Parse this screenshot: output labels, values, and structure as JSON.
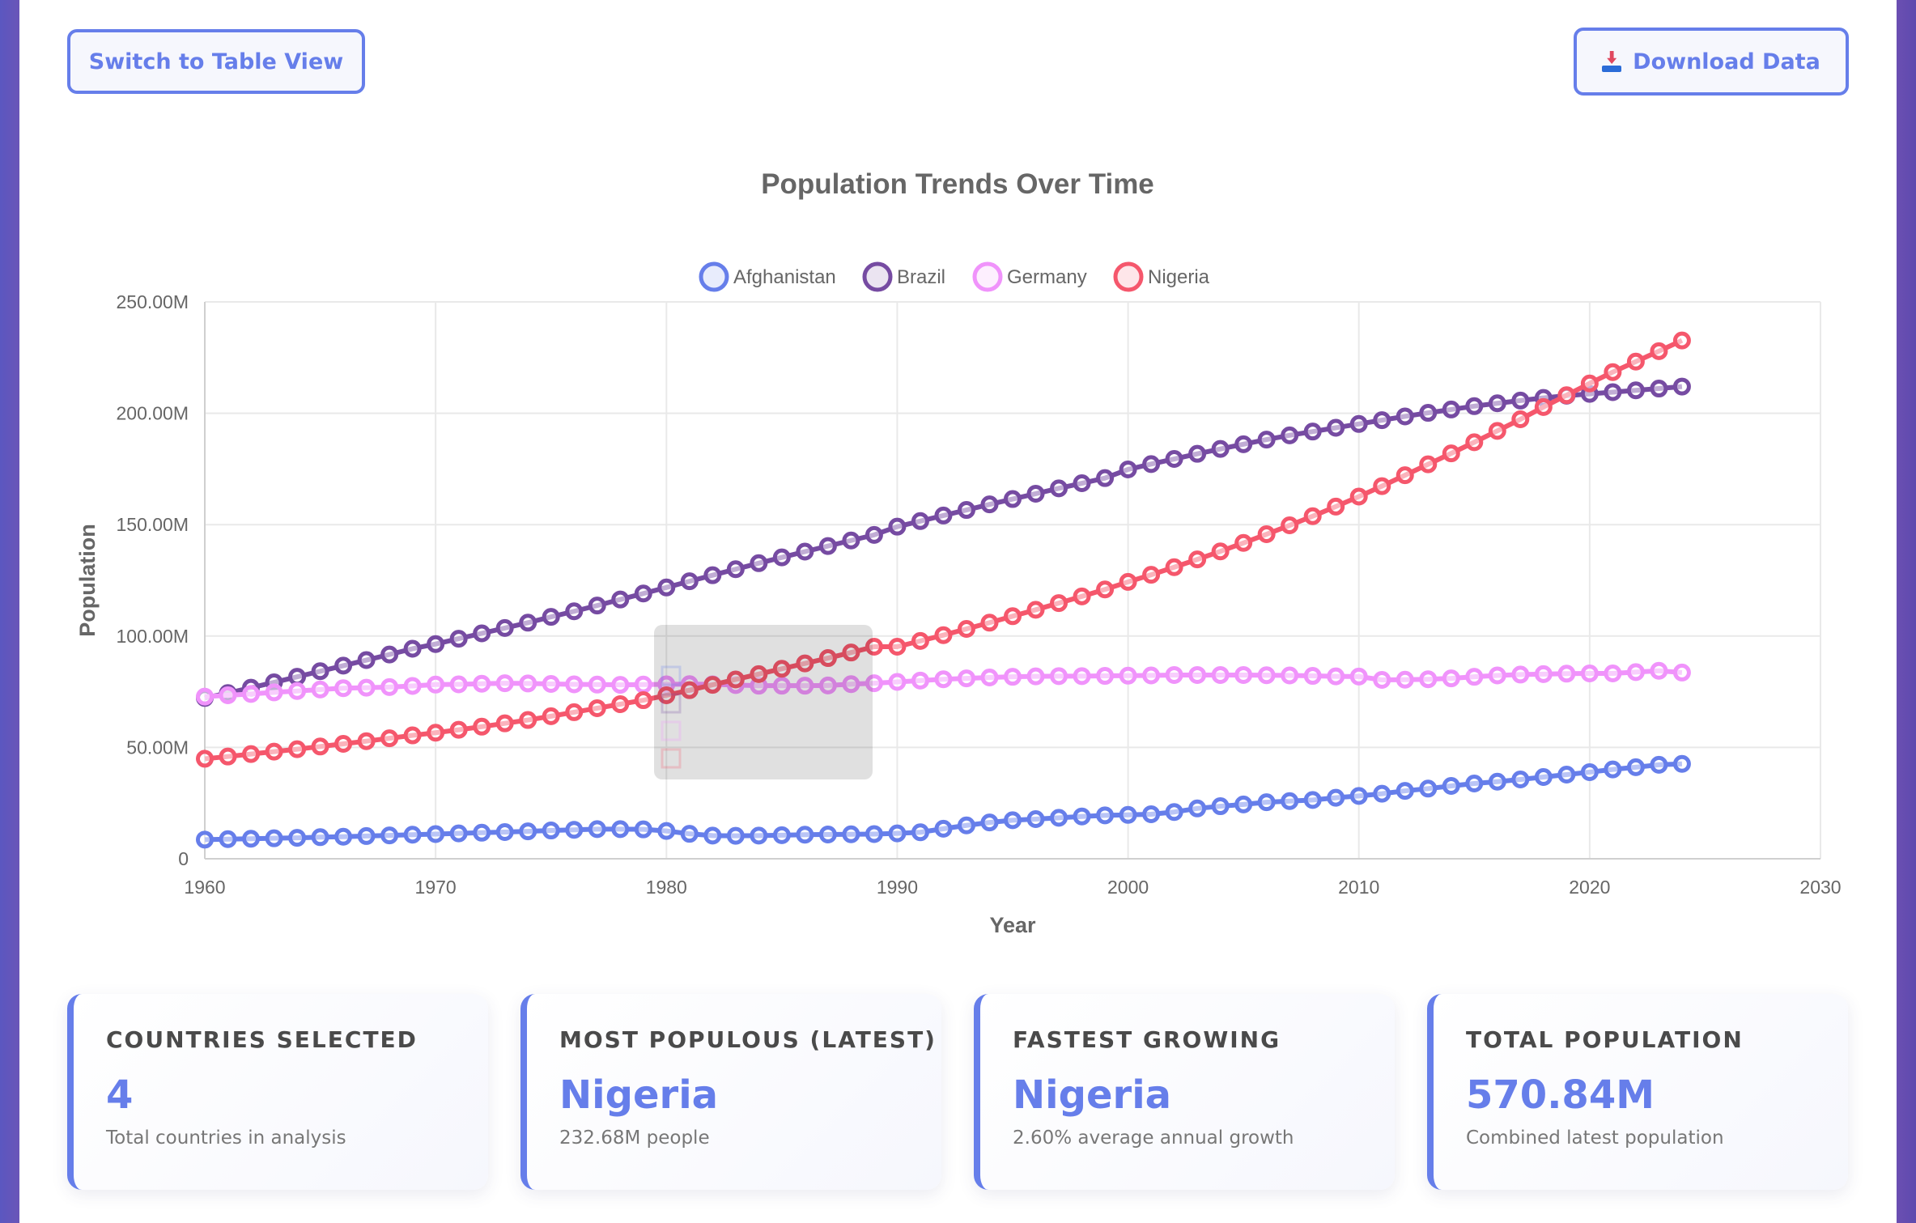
{
  "buttons": {
    "table_view": "Switch to Table View",
    "download": "Download Data",
    "download_icon": "download-inbox-icon"
  },
  "colors": {
    "accent": "#667eea",
    "Afghanistan": "#667eea",
    "Brazil": "#764ba2",
    "Germany": "#f093fb",
    "Nigeria": "#f5576c"
  },
  "chart_data": {
    "type": "line",
    "title": "Population Trends Over Time",
    "xlabel": "Year",
    "ylabel": "Population",
    "xlim": [
      1960,
      2030
    ],
    "ylim": [
      0,
      250000000
    ],
    "x_ticks": [
      "1960",
      "1970",
      "1980",
      "1990",
      "2000",
      "2010",
      "2020",
      "2030"
    ],
    "y_ticks": [
      "0",
      "50.00M",
      "100.00M",
      "150.00M",
      "200.00M",
      "250.00M"
    ],
    "grid": true,
    "legend_position": "top-center",
    "x": [
      1960,
      1961,
      1962,
      1963,
      1964,
      1965,
      1966,
      1967,
      1968,
      1969,
      1970,
      1971,
      1972,
      1973,
      1974,
      1975,
      1976,
      1977,
      1978,
      1979,
      1980,
      1981,
      1982,
      1983,
      1984,
      1985,
      1986,
      1987,
      1988,
      1989,
      1990,
      1991,
      1992,
      1993,
      1994,
      1995,
      1996,
      1997,
      1998,
      1999,
      2000,
      2001,
      2002,
      2003,
      2004,
      2005,
      2006,
      2007,
      2008,
      2009,
      2010,
      2011,
      2012,
      2013,
      2014,
      2015,
      2016,
      2017,
      2018,
      2019,
      2020,
      2021,
      2022,
      2023,
      2024
    ],
    "series": [
      {
        "name": "Afghanistan",
        "values": [
          8.6,
          8.8,
          9.0,
          9.2,
          9.4,
          9.7,
          9.9,
          10.2,
          10.5,
          10.8,
          11.1,
          11.4,
          11.7,
          12.0,
          12.3,
          12.7,
          13.0,
          13.3,
          13.3,
          13.2,
          12.5,
          11.2,
          10.4,
          10.3,
          10.4,
          10.6,
          10.8,
          10.9,
          11.0,
          11.1,
          11.4,
          11.9,
          13.5,
          15.0,
          16.3,
          17.3,
          17.8,
          18.4,
          19.0,
          19.5,
          19.7,
          20.0,
          21.0,
          22.6,
          23.6,
          24.4,
          25.4,
          25.9,
          26.4,
          27.4,
          28.2,
          29.2,
          30.5,
          31.5,
          32.7,
          33.8,
          34.6,
          35.6,
          36.7,
          37.8,
          38.9,
          40.1,
          41.1,
          42.2,
          42.6
        ]
      },
      {
        "name": "Brazil",
        "values": [
          72.2,
          74.4,
          76.8,
          79.2,
          81.7,
          84.2,
          86.7,
          89.2,
          91.7,
          94.3,
          96.4,
          98.8,
          101.2,
          103.6,
          106.0,
          108.6,
          111.1,
          113.7,
          116.4,
          119.1,
          121.8,
          124.6,
          127.3,
          130.0,
          132.7,
          135.3,
          137.9,
          140.4,
          142.9,
          145.4,
          149.1,
          151.6,
          154.1,
          156.6,
          159.1,
          161.5,
          163.9,
          166.3,
          168.6,
          170.9,
          174.8,
          177.2,
          179.5,
          181.8,
          184.0,
          186.1,
          188.2,
          190.1,
          191.8,
          193.5,
          195.2,
          196.9,
          198.6,
          200.2,
          201.7,
          203.2,
          204.5,
          205.7,
          206.9,
          207.9,
          208.7,
          209.5,
          210.3,
          211.1,
          212.0
        ]
      },
      {
        "name": "Germany",
        "values": [
          72.8,
          73.4,
          74.0,
          74.7,
          75.3,
          76.0,
          76.6,
          76.8,
          77.1,
          77.6,
          78.2,
          78.3,
          78.6,
          78.8,
          78.7,
          78.5,
          78.3,
          78.2,
          78.1,
          78.2,
          78.3,
          78.4,
          78.3,
          78.0,
          77.7,
          77.7,
          77.7,
          77.8,
          78.4,
          78.8,
          79.4,
          80.0,
          80.6,
          81.0,
          81.4,
          81.7,
          81.9,
          82.0,
          82.0,
          82.1,
          82.2,
          82.3,
          82.5,
          82.5,
          82.5,
          82.5,
          82.4,
          82.3,
          82.1,
          81.9,
          81.8,
          80.3,
          80.4,
          80.6,
          81.0,
          81.7,
          82.3,
          82.7,
          82.9,
          83.1,
          83.2,
          83.2,
          83.8,
          84.4,
          83.6
        ]
      },
      {
        "name": "Nigeria",
        "values": [
          44.9,
          45.9,
          47.0,
          48.1,
          49.2,
          50.4,
          51.6,
          52.8,
          54.1,
          55.4,
          56.6,
          57.9,
          59.3,
          60.8,
          62.3,
          64.0,
          65.8,
          67.6,
          69.4,
          71.2,
          73.4,
          75.7,
          78.1,
          80.5,
          82.9,
          85.3,
          87.7,
          90.1,
          92.6,
          95.2,
          95.2,
          97.8,
          100.4,
          103.2,
          106.0,
          108.9,
          111.8,
          114.8,
          117.8,
          120.9,
          124.3,
          127.5,
          130.9,
          134.4,
          138.0,
          141.8,
          145.7,
          149.7,
          153.8,
          158.1,
          162.6,
          167.3,
          172.2,
          177.1,
          182.0,
          187.0,
          192.1,
          197.3,
          202.8,
          208.1,
          213.4,
          218.5,
          223.2,
          227.9,
          232.7
        ]
      }
    ],
    "tooltip": {
      "visible": true,
      "style": "faded"
    }
  },
  "stats": [
    {
      "label": "COUNTRIES SELECTED",
      "value": "4",
      "sub": "Total countries in analysis"
    },
    {
      "label": "MOST POPULOUS (LATEST)",
      "value": "Nigeria",
      "sub": "232.68M people"
    },
    {
      "label": "FASTEST GROWING",
      "value": "Nigeria",
      "sub": "2.60% average annual growth"
    },
    {
      "label": "TOTAL POPULATION",
      "value": "570.84M",
      "sub": "Combined latest population"
    }
  ]
}
